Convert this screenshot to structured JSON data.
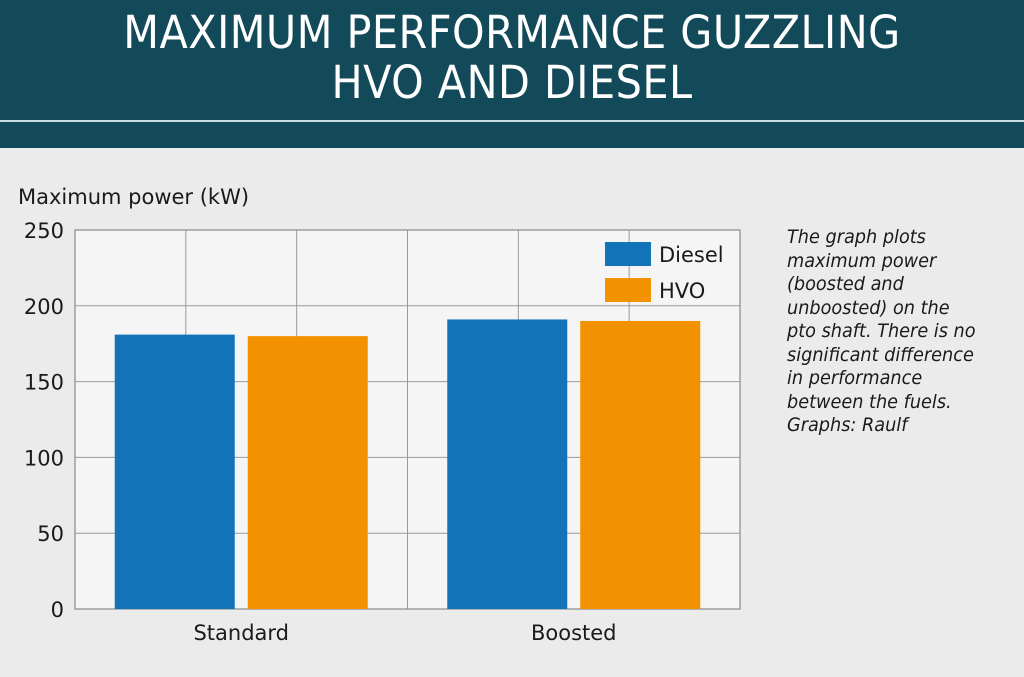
{
  "header": {
    "title_line1": "MAXIMUM PERFORMANCE GUZZLING",
    "title_line2": "HVO AND DIESEL"
  },
  "caption": {
    "lines": [
      "The graph plots",
      "maximum power",
      "(boosted and",
      "unboosted) on the",
      "pto shaft. There is no",
      "significant difference",
      "in performance",
      "between the fuels.",
      "Graphs: Raulf"
    ]
  },
  "colors": {
    "banner": "#134a5a",
    "diesel": "#1373b9",
    "hvo": "#f39200",
    "plot_bg": "#f5f5f5",
    "page_bg": "#ebebeb"
  },
  "chart_data": {
    "type": "bar",
    "title": "",
    "xlabel": "",
    "ylabel": "Maximum power (kW)",
    "categories": [
      "Standard",
      "Boosted"
    ],
    "series": [
      {
        "name": "Diesel",
        "values": [
          181,
          191
        ]
      },
      {
        "name": "HVO",
        "values": [
          180,
          190
        ]
      }
    ],
    "ylim": [
      0,
      250
    ],
    "yticks": [
      0,
      50,
      100,
      150,
      200,
      250
    ],
    "grid": true,
    "legend_position": "top-right"
  }
}
